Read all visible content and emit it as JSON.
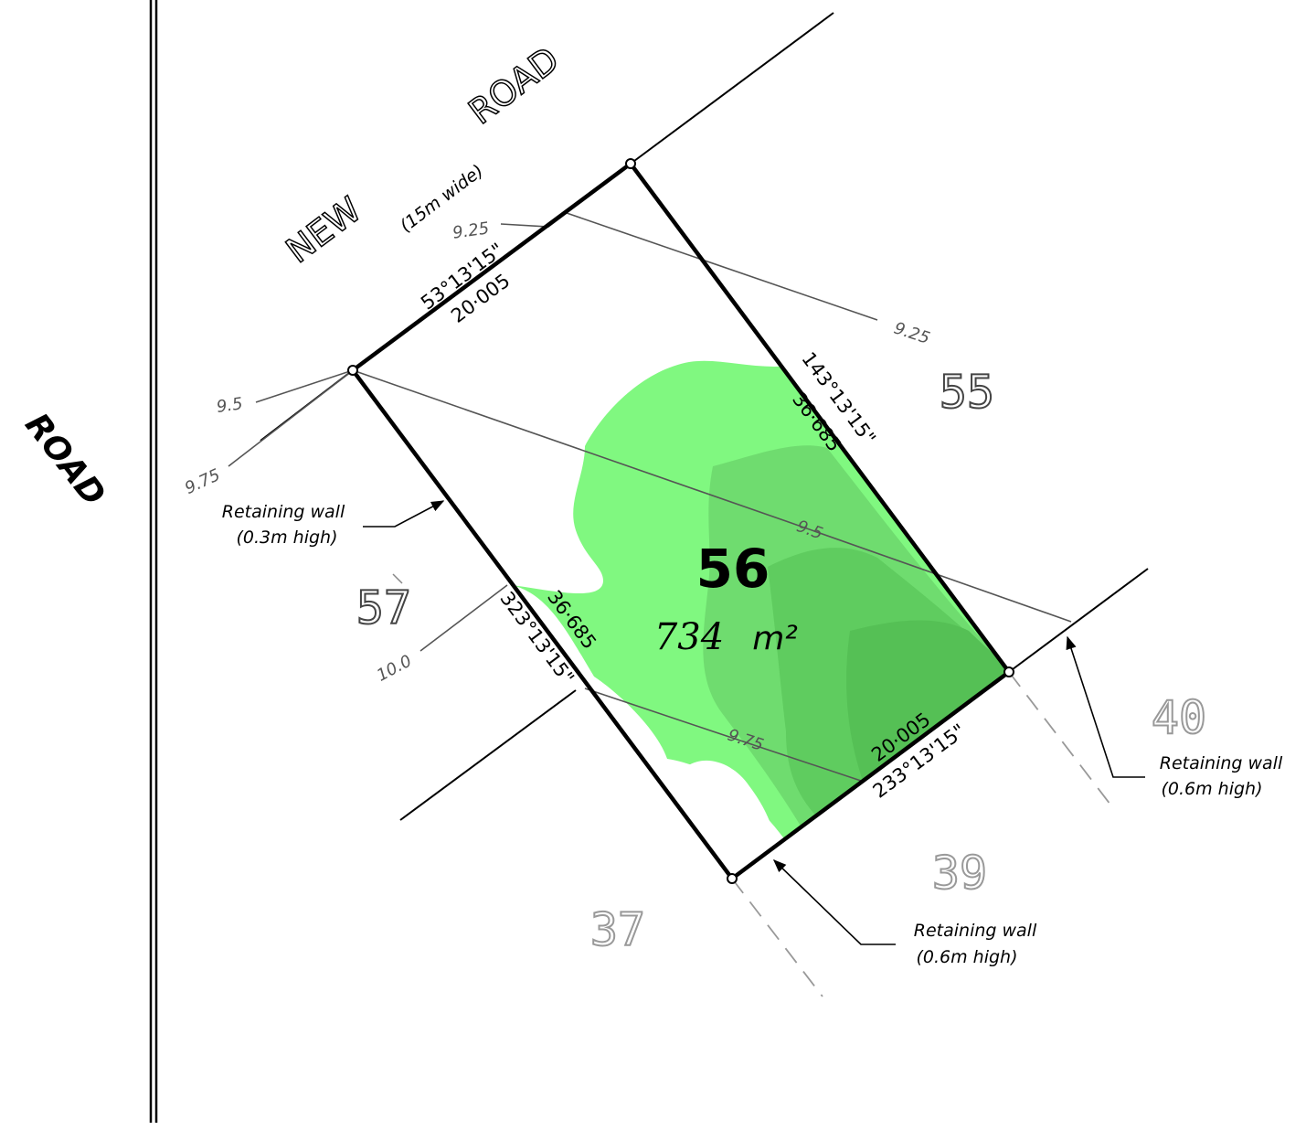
{
  "road": {
    "name": "ROAD"
  },
  "new_road": {
    "word1": "NEW",
    "word2": "ROAD",
    "width_note": "(15m wide)"
  },
  "subject_lot": {
    "number": "56",
    "area_value": "734",
    "area_unit": "m²",
    "color": "#66ee66"
  },
  "boundaries": {
    "front": {
      "bearing": "53°13'15\"",
      "distance": "20·005"
    },
    "east": {
      "bearing": "143°13'15\"",
      "distance": "36·685"
    },
    "west": {
      "bearing": "323°13'15\"",
      "distance": "36·685"
    },
    "rear": {
      "bearing": "233°13'15\"",
      "distance": "20·005"
    }
  },
  "neighbour_lots": {
    "lot55": "55",
    "lot57": "57",
    "lot40": "40",
    "lot39": "39",
    "lot37": "37"
  },
  "contours": {
    "c925_left": "9.25",
    "c925_right": "9.25",
    "c95_left": "9.5",
    "c95_mid": "9.5",
    "c975_left": "9.75",
    "c975_mid": "9.75",
    "c100": "10.0"
  },
  "retaining_walls": {
    "west": {
      "line1": "Retaining wall",
      "line2": "(0.3m high)"
    },
    "east": {
      "line1": "Retaining wall",
      "line2": "(0.6m high)"
    },
    "bottom": {
      "line1": "Retaining wall",
      "line2": "(0.6m high)"
    }
  }
}
